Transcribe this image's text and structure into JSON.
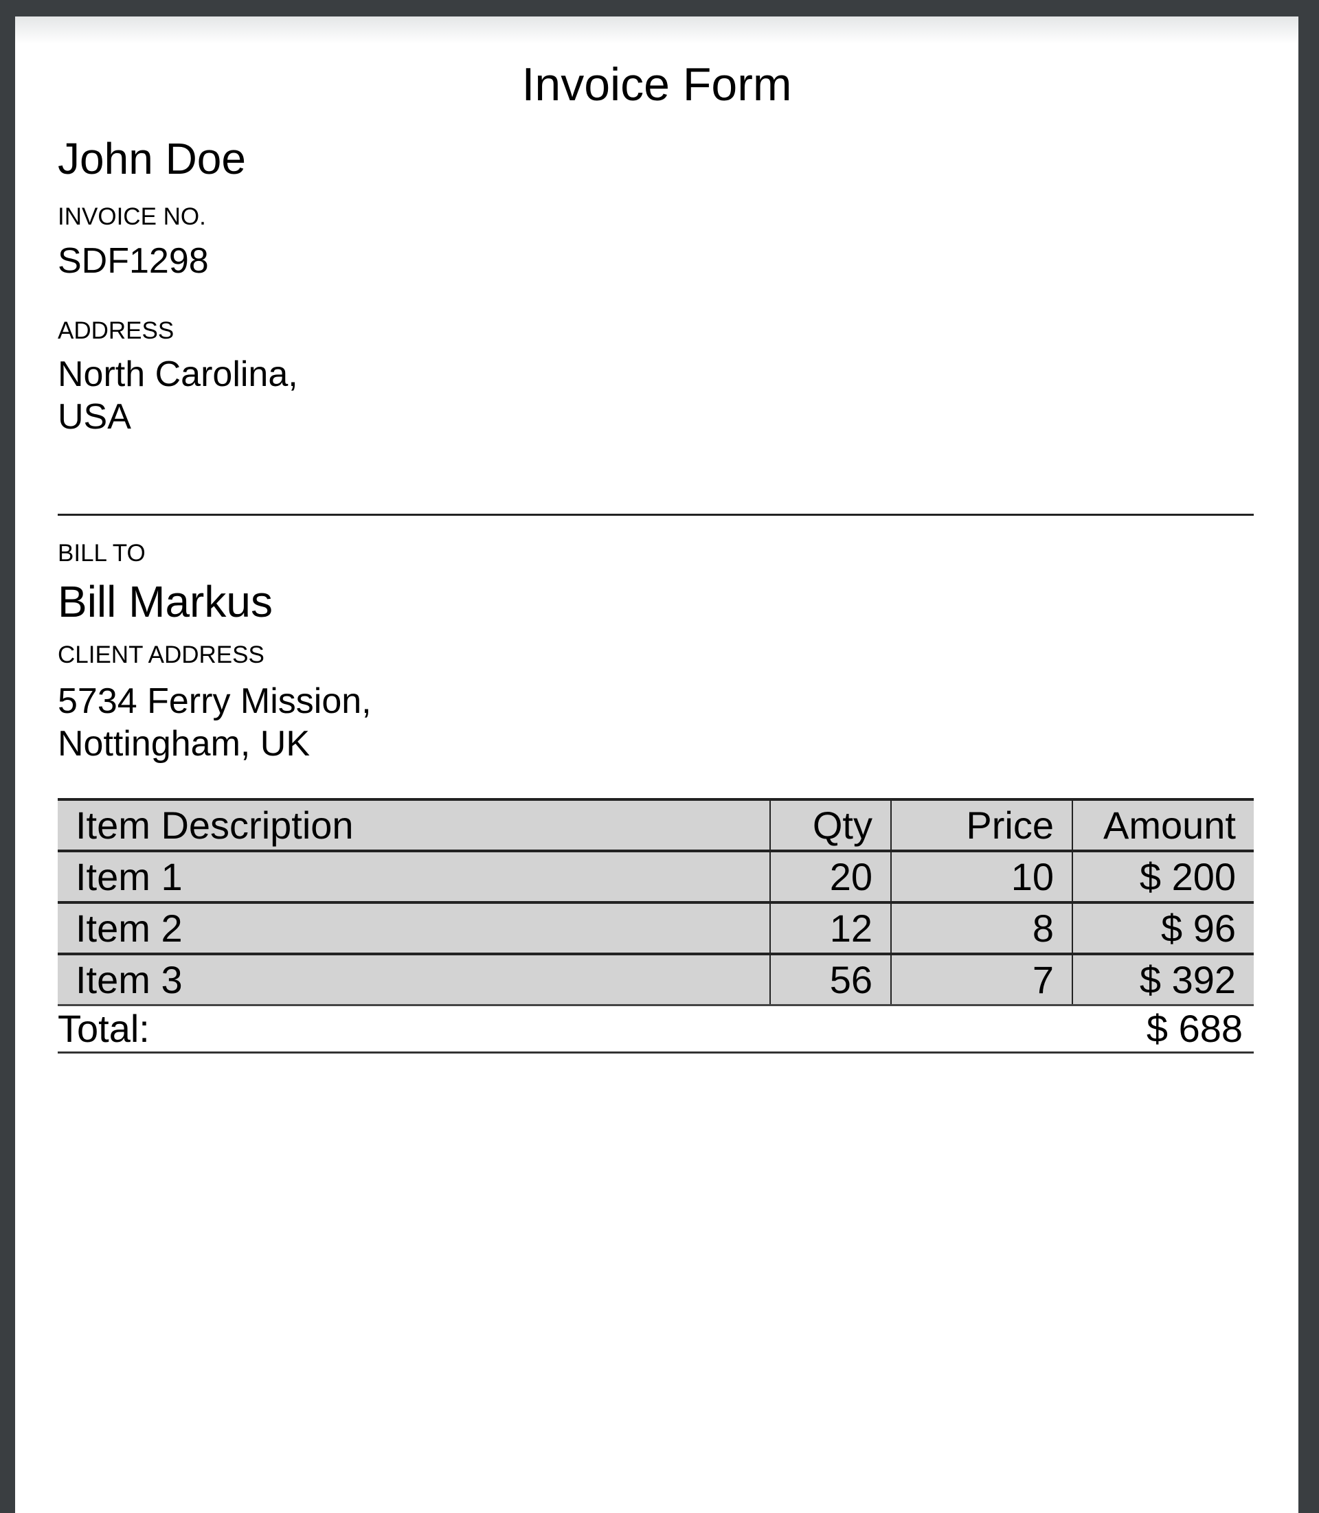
{
  "title": "Invoice Form",
  "sender": {
    "name": "John Doe",
    "invoice_no_label": "INVOICE NO.",
    "invoice_no": "SDF1298",
    "address_label": "ADDRESS",
    "address_line1": "North Carolina,",
    "address_line2": "USA"
  },
  "bill_to": {
    "label": "BILL TO",
    "name": "Bill Markus",
    "address_label": "CLIENT ADDRESS",
    "address_line1": "5734 Ferry Mission,",
    "address_line2": "Nottingham, UK"
  },
  "table": {
    "headers": [
      "Item Description",
      "Qty",
      "Price",
      "Amount"
    ],
    "rows": [
      [
        "Item 1",
        "20",
        "10",
        "$ 200"
      ],
      [
        "Item 2",
        "12",
        "8",
        "$ 96"
      ],
      [
        "Item 3",
        "56",
        "7",
        "$ 392"
      ]
    ],
    "total_label": "Total:",
    "total_value": "$ 688"
  }
}
